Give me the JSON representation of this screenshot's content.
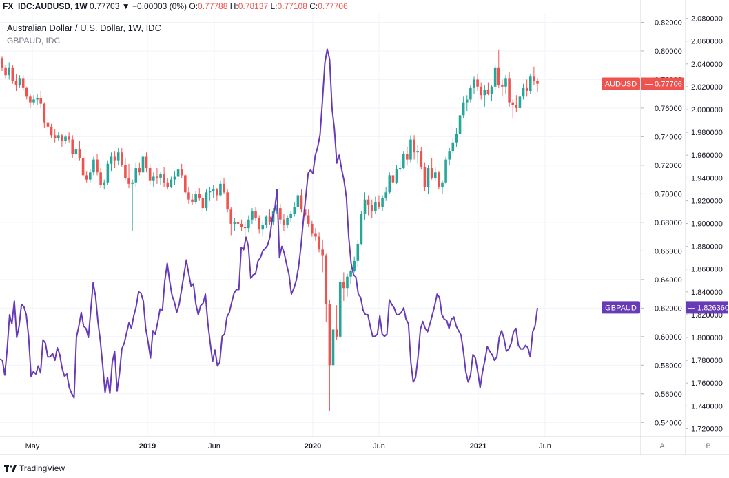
{
  "header": {
    "symbol": "FX_IDC:AUDUSD, 1W",
    "last": "0.77703",
    "change": "▼ −0.00003 (0%)",
    "o_label": "O:",
    "o_value": "0.77788",
    "h_label": "H:",
    "h_value": "0.78137",
    "l_label": "L:",
    "l_value": "0.77108",
    "c_label": "C:",
    "c_value": "0.77706"
  },
  "legend": {
    "main_series": "Australian Dollar / U.S. Dollar, 1W, IDC",
    "compare_series": "GBPAUD, IDC"
  },
  "footer": {
    "brand": "TradingView"
  },
  "scale_buttons": {
    "a": "A",
    "b": "B"
  },
  "colors": {
    "up": "#26a69a",
    "down": "#ef5350",
    "compare": "#673ab7",
    "grid": "#f0f3fa",
    "axis_text": "#131722"
  },
  "chart_data": {
    "type": "line",
    "x_tick_labels": [
      "May",
      "2019",
      "Jun",
      "2020",
      "Jun",
      "2021",
      "Jun"
    ],
    "left_axis": {
      "series": "AUDUSD",
      "ylim": [
        0.53,
        0.826
      ],
      "tick_labels": [
        "0.82000",
        "0.80000",
        "0.78000",
        "0.76000",
        "0.74000",
        "0.72000",
        "0.70000",
        "0.68000",
        "0.66000",
        "0.64000",
        "0.62000",
        "0.60000",
        "0.58000",
        "0.56000",
        "0.54000"
      ],
      "last_value_label": "AUDUSD",
      "last_value": "0.77706"
    },
    "right_axis": {
      "series": "GBPAUD",
      "ylim": [
        1.713,
        2.084
      ],
      "tick_labels": [
        "2.080000",
        "2.060000",
        "2.040000",
        "2.020000",
        "2.000000",
        "1.980000",
        "1.960000",
        "1.940000",
        "1.920000",
        "1.900000",
        "1.880000",
        "1.860000",
        "1.840000",
        "1.820000",
        "1.800000",
        "1.780000",
        "1.760000",
        "1.740000",
        "1.720000"
      ],
      "last_value_label": "GBPAUD",
      "last_value": "1.826360"
    },
    "candles_ohlc": [
      [
        0.795,
        0.796,
        0.786,
        0.788
      ],
      [
        0.788,
        0.79,
        0.781,
        0.783
      ],
      [
        0.783,
        0.792,
        0.78,
        0.788
      ],
      [
        0.788,
        0.79,
        0.777,
        0.779
      ],
      [
        0.779,
        0.784,
        0.772,
        0.776
      ],
      [
        0.776,
        0.783,
        0.774,
        0.781
      ],
      [
        0.781,
        0.783,
        0.772,
        0.774
      ],
      [
        0.774,
        0.775,
        0.766,
        0.768
      ],
      [
        0.768,
        0.77,
        0.76,
        0.764
      ],
      [
        0.764,
        0.769,
        0.762,
        0.766
      ],
      [
        0.766,
        0.77,
        0.762,
        0.767
      ],
      [
        0.767,
        0.772,
        0.76,
        0.763
      ],
      [
        0.763,
        0.764,
        0.746,
        0.75
      ],
      [
        0.75,
        0.754,
        0.744,
        0.747
      ],
      [
        0.747,
        0.749,
        0.739,
        0.741
      ],
      [
        0.741,
        0.745,
        0.736,
        0.739
      ],
      [
        0.739,
        0.743,
        0.737,
        0.741
      ],
      [
        0.741,
        0.742,
        0.733,
        0.737
      ],
      [
        0.737,
        0.741,
        0.735,
        0.74
      ],
      [
        0.74,
        0.743,
        0.736,
        0.738
      ],
      [
        0.738,
        0.741,
        0.725,
        0.728
      ],
      [
        0.728,
        0.733,
        0.726,
        0.731
      ],
      [
        0.731,
        0.737,
        0.723,
        0.725
      ],
      [
        0.725,
        0.727,
        0.711,
        0.713
      ],
      [
        0.713,
        0.716,
        0.708,
        0.71
      ],
      [
        0.71,
        0.717,
        0.708,
        0.715
      ],
      [
        0.715,
        0.726,
        0.713,
        0.724
      ],
      [
        0.724,
        0.728,
        0.713,
        0.715
      ],
      [
        0.715,
        0.718,
        0.704,
        0.706
      ],
      [
        0.706,
        0.71,
        0.703,
        0.708
      ],
      [
        0.708,
        0.723,
        0.706,
        0.721
      ],
      [
        0.721,
        0.729,
        0.716,
        0.726
      ],
      [
        0.726,
        0.73,
        0.718,
        0.723
      ],
      [
        0.723,
        0.732,
        0.72,
        0.729
      ],
      [
        0.729,
        0.732,
        0.719,
        0.72
      ],
      [
        0.72,
        0.725,
        0.71,
        0.711
      ],
      [
        0.711,
        0.721,
        0.704,
        0.707
      ],
      [
        0.707,
        0.71,
        0.674,
        0.708
      ],
      [
        0.708,
        0.722,
        0.705,
        0.718
      ],
      [
        0.718,
        0.722,
        0.713,
        0.715
      ],
      [
        0.715,
        0.727,
        0.712,
        0.726
      ],
      [
        0.726,
        0.729,
        0.715,
        0.718
      ],
      [
        0.718,
        0.721,
        0.706,
        0.709
      ],
      [
        0.709,
        0.715,
        0.705,
        0.712
      ],
      [
        0.712,
        0.718,
        0.707,
        0.711
      ],
      [
        0.711,
        0.715,
        0.706,
        0.714
      ],
      [
        0.714,
        0.719,
        0.705,
        0.708
      ],
      [
        0.708,
        0.711,
        0.703,
        0.705
      ],
      [
        0.705,
        0.712,
        0.704,
        0.71
      ],
      [
        0.71,
        0.716,
        0.706,
        0.712
      ],
      [
        0.712,
        0.718,
        0.709,
        0.717
      ],
      [
        0.717,
        0.721,
        0.711,
        0.713
      ],
      [
        0.713,
        0.714,
        0.7,
        0.701
      ],
      [
        0.701,
        0.705,
        0.693,
        0.696
      ],
      [
        0.696,
        0.7,
        0.692,
        0.694
      ],
      [
        0.694,
        0.702,
        0.693,
        0.7
      ],
      [
        0.7,
        0.704,
        0.695,
        0.697
      ],
      [
        0.697,
        0.699,
        0.687,
        0.69
      ],
      [
        0.69,
        0.703,
        0.688,
        0.701
      ],
      [
        0.701,
        0.705,
        0.695,
        0.702
      ],
      [
        0.702,
        0.706,
        0.697,
        0.703
      ],
      [
        0.703,
        0.704,
        0.695,
        0.699
      ],
      [
        0.699,
        0.709,
        0.698,
        0.707
      ],
      [
        0.707,
        0.711,
        0.7,
        0.701
      ],
      [
        0.701,
        0.703,
        0.687,
        0.689
      ],
      [
        0.689,
        0.691,
        0.671,
        0.679
      ],
      [
        0.679,
        0.683,
        0.674,
        0.68
      ],
      [
        0.68,
        0.683,
        0.67,
        0.679
      ],
      [
        0.679,
        0.682,
        0.674,
        0.677
      ],
      [
        0.677,
        0.68,
        0.67,
        0.676
      ],
      [
        0.676,
        0.685,
        0.673,
        0.682
      ],
      [
        0.682,
        0.69,
        0.679,
        0.688
      ],
      [
        0.688,
        0.691,
        0.681,
        0.683
      ],
      [
        0.683,
        0.685,
        0.672,
        0.675
      ],
      [
        0.675,
        0.681,
        0.67,
        0.678
      ],
      [
        0.678,
        0.685,
        0.676,
        0.684
      ],
      [
        0.684,
        0.689,
        0.678,
        0.68
      ],
      [
        0.68,
        0.69,
        0.678,
        0.688
      ],
      [
        0.688,
        0.692,
        0.686,
        0.69
      ],
      [
        0.69,
        0.693,
        0.679,
        0.682
      ],
      [
        0.682,
        0.686,
        0.674,
        0.678
      ],
      [
        0.678,
        0.685,
        0.676,
        0.683
      ],
      [
        0.683,
        0.688,
        0.68,
        0.686
      ],
      [
        0.686,
        0.694,
        0.684,
        0.691
      ],
      [
        0.691,
        0.701,
        0.688,
        0.699
      ],
      [
        0.699,
        0.703,
        0.687,
        0.689
      ],
      [
        0.689,
        0.692,
        0.681,
        0.685
      ],
      [
        0.685,
        0.689,
        0.677,
        0.679
      ],
      [
        0.679,
        0.681,
        0.67,
        0.672
      ],
      [
        0.672,
        0.676,
        0.667,
        0.67
      ],
      [
        0.67,
        0.673,
        0.659,
        0.661
      ],
      [
        0.661,
        0.668,
        0.645,
        0.657
      ],
      [
        0.657,
        0.658,
        0.61,
        0.623
      ],
      [
        0.623,
        0.626,
        0.548,
        0.58
      ],
      [
        0.58,
        0.615,
        0.57,
        0.605
      ],
      [
        0.605,
        0.622,
        0.598,
        0.6
      ],
      [
        0.6,
        0.64,
        0.599,
        0.638
      ],
      [
        0.638,
        0.645,
        0.625,
        0.634
      ],
      [
        0.634,
        0.644,
        0.628,
        0.642
      ],
      [
        0.642,
        0.647,
        0.637,
        0.646
      ],
      [
        0.646,
        0.656,
        0.645,
        0.653
      ],
      [
        0.653,
        0.668,
        0.649,
        0.665
      ],
      [
        0.665,
        0.688,
        0.664,
        0.686
      ],
      [
        0.686,
        0.701,
        0.682,
        0.696
      ],
      [
        0.696,
        0.699,
        0.685,
        0.692
      ],
      [
        0.692,
        0.696,
        0.683,
        0.688
      ],
      [
        0.688,
        0.698,
        0.686,
        0.694
      ],
      [
        0.694,
        0.699,
        0.689,
        0.691
      ],
      [
        0.691,
        0.699,
        0.688,
        0.697
      ],
      [
        0.697,
        0.705,
        0.695,
        0.701
      ],
      [
        0.701,
        0.715,
        0.7,
        0.713
      ],
      [
        0.713,
        0.716,
        0.706,
        0.708
      ],
      [
        0.708,
        0.72,
        0.707,
        0.717
      ],
      [
        0.717,
        0.724,
        0.715,
        0.718
      ],
      [
        0.718,
        0.73,
        0.717,
        0.728
      ],
      [
        0.728,
        0.733,
        0.72,
        0.724
      ],
      [
        0.724,
        0.741,
        0.722,
        0.738
      ],
      [
        0.738,
        0.741,
        0.724,
        0.729
      ],
      [
        0.729,
        0.734,
        0.721,
        0.73
      ],
      [
        0.73,
        0.733,
        0.717,
        0.719
      ],
      [
        0.719,
        0.722,
        0.702,
        0.705
      ],
      [
        0.705,
        0.72,
        0.7,
        0.718
      ],
      [
        0.718,
        0.725,
        0.71,
        0.711
      ],
      [
        0.711,
        0.719,
        0.709,
        0.715
      ],
      [
        0.715,
        0.716,
        0.703,
        0.705
      ],
      [
        0.705,
        0.709,
        0.7,
        0.708
      ],
      [
        0.708,
        0.726,
        0.707,
        0.724
      ],
      [
        0.724,
        0.732,
        0.72,
        0.73
      ],
      [
        0.73,
        0.739,
        0.728,
        0.736
      ],
      [
        0.736,
        0.746,
        0.733,
        0.742
      ],
      [
        0.742,
        0.757,
        0.74,
        0.755
      ],
      [
        0.755,
        0.768,
        0.753,
        0.764
      ],
      [
        0.764,
        0.769,
        0.758,
        0.766
      ],
      [
        0.766,
        0.776,
        0.764,
        0.774
      ],
      [
        0.774,
        0.782,
        0.77,
        0.78
      ],
      [
        0.78,
        0.784,
        0.772,
        0.775
      ],
      [
        0.775,
        0.778,
        0.766,
        0.769
      ],
      [
        0.769,
        0.776,
        0.761,
        0.773
      ],
      [
        0.773,
        0.778,
        0.769,
        0.77
      ],
      [
        0.77,
        0.776,
        0.765,
        0.775
      ],
      [
        0.775,
        0.79,
        0.773,
        0.788
      ],
      [
        0.788,
        0.801,
        0.774,
        0.776
      ],
      [
        0.776,
        0.78,
        0.768,
        0.775
      ],
      [
        0.775,
        0.783,
        0.77,
        0.781
      ],
      [
        0.781,
        0.785,
        0.761,
        0.764
      ],
      [
        0.764,
        0.766,
        0.753,
        0.762
      ],
      [
        0.762,
        0.769,
        0.757,
        0.76
      ],
      [
        0.76,
        0.77,
        0.758,
        0.768
      ],
      [
        0.768,
        0.777,
        0.766,
        0.774
      ],
      [
        0.774,
        0.78,
        0.768,
        0.772
      ],
      [
        0.772,
        0.784,
        0.77,
        0.782
      ],
      [
        0.782,
        0.789,
        0.776,
        0.779
      ],
      [
        0.779,
        0.781,
        0.771,
        0.777
      ]
    ],
    "compare_line": [
      1.781,
      1.78,
      1.767,
      1.79,
      1.82,
      1.812,
      1.832,
      1.8,
      1.81,
      1.829,
      1.827,
      1.82,
      1.8,
      1.766,
      1.77,
      1.768,
      1.775,
      1.769,
      1.798,
      1.795,
      1.783,
      1.783,
      1.786,
      1.78,
      1.791,
      1.785,
      1.773,
      1.766,
      1.768,
      1.756,
      1.751,
      1.747,
      1.8,
      1.81,
      1.822,
      1.81,
      1.808,
      1.8,
      1.824,
      1.848,
      1.836,
      1.814,
      1.797,
      1.775,
      1.752,
      1.765,
      1.751,
      1.778,
      1.788,
      1.753,
      1.768,
      1.79,
      1.795,
      1.804,
      1.813,
      1.808,
      1.819,
      1.827,
      1.84,
      1.839,
      1.832,
      1.808,
      1.796,
      1.782,
      1.806,
      1.803,
      1.813,
      1.825,
      1.824,
      1.85,
      1.865,
      1.85,
      1.837,
      1.831,
      1.822,
      1.829,
      1.842,
      1.855,
      1.868,
      1.856,
      1.845,
      1.847,
      1.829,
      1.82,
      1.828,
      1.83,
      1.838,
      1.813,
      1.795,
      1.779,
      1.789,
      1.775,
      1.778,
      1.801,
      1.803,
      1.818,
      1.822,
      1.831,
      1.839,
      1.842,
      1.842,
      1.879,
      1.877,
      1.888,
      1.88,
      1.852,
      1.855,
      1.856,
      1.867,
      1.87,
      1.876,
      1.878,
      1.881,
      1.888,
      1.905,
      1.912,
      1.93,
      1.87,
      1.88,
      1.874,
      1.864,
      1.855,
      1.838,
      1.843,
      1.85,
      1.862,
      1.88,
      1.903,
      1.923,
      1.944,
      1.947,
      1.944,
      1.96,
      1.967,
      1.978,
      2.008,
      2.041,
      2.053,
      2.044,
      2.001,
      1.983,
      1.953,
      1.96,
      1.948,
      1.938,
      1.923,
      1.888,
      1.865,
      1.855,
      1.853,
      1.838,
      1.835,
      1.824,
      1.82,
      1.82,
      1.81,
      1.801,
      1.801,
      1.803,
      1.819,
      1.803,
      1.801,
      1.803,
      1.833,
      1.829,
      1.826,
      1.82,
      1.82,
      1.822,
      1.826,
      1.816,
      1.812,
      1.778,
      1.761,
      1.765,
      1.783,
      1.807,
      1.814,
      1.808,
      1.805,
      1.812,
      1.82,
      1.828,
      1.838,
      1.835,
      1.82,
      1.816,
      1.815,
      1.808,
      1.816,
      1.818,
      1.81,
      1.806,
      1.802,
      1.788,
      1.77,
      1.761,
      1.767,
      1.785,
      1.782,
      1.77,
      1.756,
      1.77,
      1.78,
      1.792,
      1.788,
      1.785,
      1.78,
      1.783,
      1.8,
      1.806,
      1.799,
      1.788,
      1.79,
      1.795,
      1.805,
      1.808,
      1.793,
      1.79,
      1.79,
      1.793,
      1.791,
      1.783,
      1.805,
      1.81,
      1.826
    ]
  }
}
